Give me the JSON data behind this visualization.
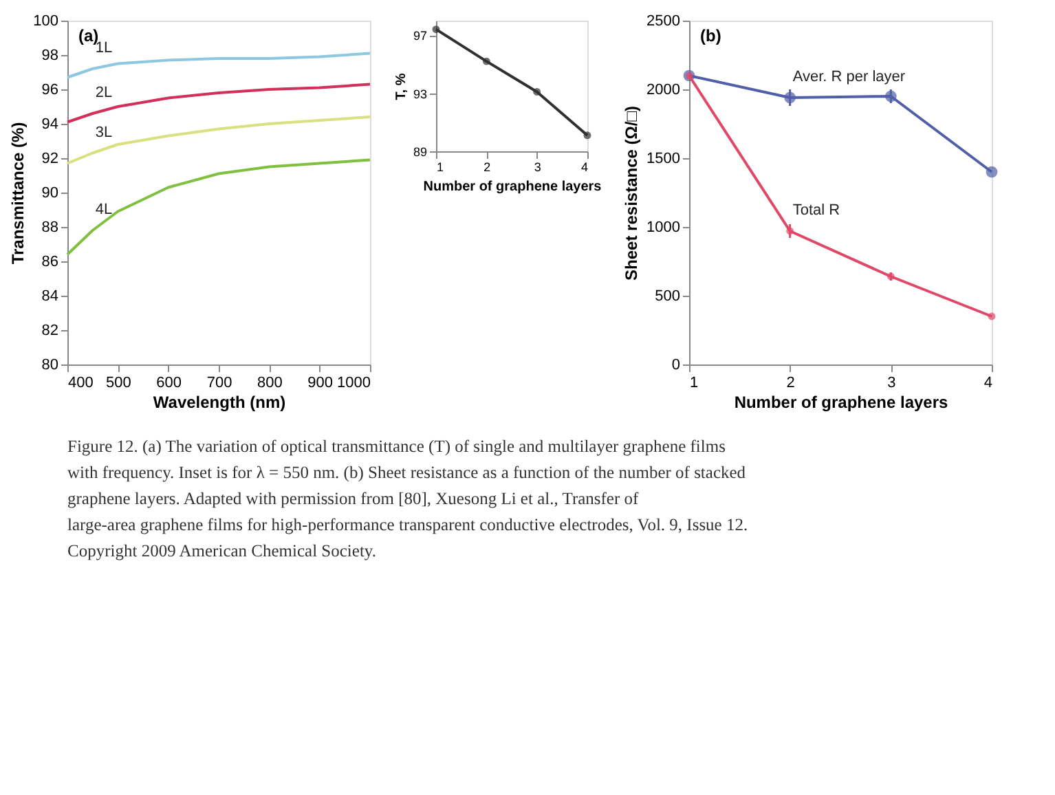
{
  "chart_data": [
    {
      "type": "line",
      "xlabel": "Wavelength (nm)",
      "ylabel": "Transmittance (%)",
      "annotations": [
        "(a)"
      ],
      "xlim": [
        400,
        1000
      ],
      "xticks": [
        400,
        500,
        600,
        700,
        800,
        900,
        1000
      ],
      "ylim": [
        80,
        100
      ],
      "yticks": [
        80,
        82,
        84,
        86,
        88,
        90,
        92,
        94,
        96,
        98,
        100
      ],
      "grid": false,
      "marker": "none",
      "line_style": "solid",
      "x": [
        400,
        450,
        500,
        600,
        700,
        800,
        900,
        1000
      ],
      "series": [
        {
          "name": "1L",
          "color": "#8ec8e0",
          "values": [
            96.7,
            97.2,
            97.5,
            97.7,
            97.8,
            97.8,
            97.9,
            98.1
          ]
        },
        {
          "name": "2L",
          "color": "#d0305a",
          "values": [
            94.1,
            94.6,
            95.0,
            95.5,
            95.8,
            96.0,
            96.1,
            96.3
          ]
        },
        {
          "name": "3L",
          "color": "#d8e080",
          "values": [
            91.7,
            92.3,
            92.8,
            93.3,
            93.7,
            94.0,
            94.2,
            94.4
          ]
        },
        {
          "name": "4L",
          "color": "#80c040",
          "values": [
            86.4,
            87.8,
            88.9,
            90.3,
            91.1,
            91.5,
            91.7,
            91.9
          ]
        }
      ]
    },
    {
      "type": "line",
      "xlabel": "Number of graphene layers",
      "ylabel": "T, %",
      "xlim": [
        1,
        4
      ],
      "xticks": [
        1,
        2,
        3,
        4
      ],
      "ylim": [
        89,
        98
      ],
      "yticks": [
        89,
        93,
        97
      ],
      "grid": false,
      "marker": "circle",
      "line_style": "solid",
      "x": [
        1,
        2,
        3,
        4
      ],
      "series": [
        {
          "color": "#303030",
          "values": [
            97.4,
            95.2,
            93.1,
            90.1
          ]
        }
      ]
    },
    {
      "type": "line",
      "xlabel": "Number of graphene layers",
      "ylabel": "Sheet resistance (Ω/□)",
      "annotations": [
        "(b)",
        "Figure 12.  (a) The variation of optical transmittance (T) of single and multilayer graphene films",
        "with frequency. Inset is for λ = 550 nm. (b) Sheet resistance as a function of the number of stacked",
        "graphene layers. Adapted with permission from [80], Xuesong Li et al., Transfer of",
        "large-area graphene films for high-performance transparent conductive electrodes, Vol. 9, Issue 12.",
        "Copyright 2009 American Chemical Society."
      ],
      "xlim": [
        1,
        4
      ],
      "xticks": [
        1,
        2,
        3,
        4
      ],
      "ylim": [
        0,
        2500
      ],
      "yticks": [
        0,
        500,
        1000,
        1500,
        2000,
        2500
      ],
      "grid": false,
      "marker": "circle",
      "line_style": "solid",
      "x": [
        1,
        2,
        3,
        4
      ],
      "series": [
        {
          "name": "Aver. R per layer",
          "color": "#5060a8",
          "values": [
            2100,
            1940,
            1950,
            1400
          ],
          "errors": [
            null,
            60,
            50,
            null
          ]
        },
        {
          "name": "Total R",
          "color": "#e04868",
          "values": [
            2100,
            970,
            640,
            350
          ],
          "errors": [
            null,
            50,
            30,
            null
          ]
        }
      ]
    }
  ]
}
